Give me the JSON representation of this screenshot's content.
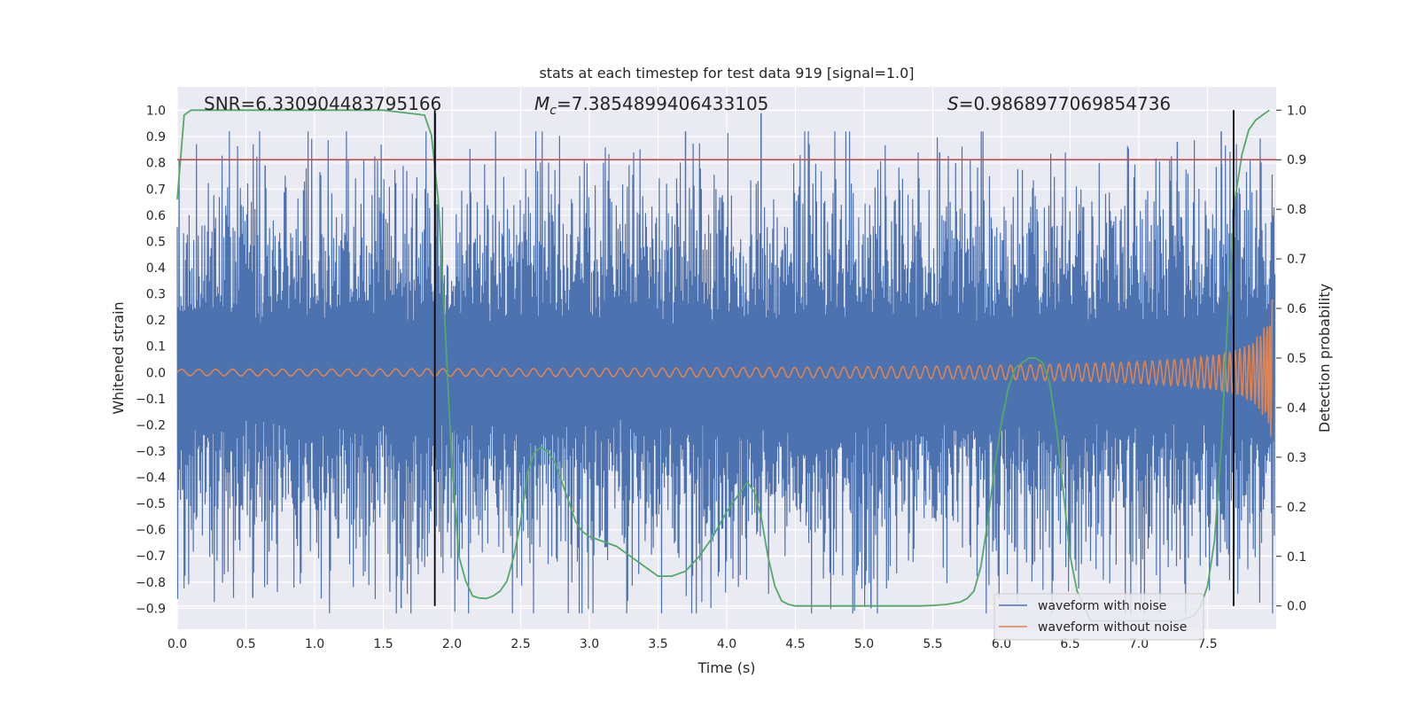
{
  "chart_data": {
    "type": "line",
    "title": "stats at each timestep for test data 919 [signal=1.0]",
    "xlabel": "Time (s)",
    "ylabel": "Whitened strain",
    "ylabel_right": "Detection probability",
    "xlim": [
      0.0,
      8.0
    ],
    "ylim": [
      -0.98,
      1.09
    ],
    "ylim_right": [
      -0.047,
      1.047
    ],
    "x_ticks": [
      "0.0",
      "0.5",
      "1.0",
      "1.5",
      "2.0",
      "2.5",
      "3.0",
      "3.5",
      "4.0",
      "4.5",
      "5.0",
      "5.5",
      "6.0",
      "6.5",
      "7.0",
      "7.5"
    ],
    "y_ticks": [
      "1.0",
      "0.9",
      "0.8",
      "0.7",
      "0.6",
      "0.5",
      "0.4",
      "0.3",
      "0.2",
      "0.1",
      "0.0",
      "−0.1",
      "−0.2",
      "−0.3",
      "−0.4",
      "−0.5",
      "−0.6",
      "−0.7",
      "−0.8",
      "−0.9"
    ],
    "y_ticks_right": [
      "1.0",
      "0.9",
      "0.8",
      "0.7",
      "0.6",
      "0.5",
      "0.4",
      "0.3",
      "0.2",
      "0.1",
      "0.0"
    ],
    "annotations": {
      "snr": "SNR=6.330904483795166",
      "mc": "=7.3854899406433105",
      "s": "=0.9868977069854736"
    },
    "series": [
      {
        "name": "waveform with noise",
        "color": "#4c72b0",
        "kind": "noisy strain, envelope ~ ±0.4, peaks to 0.99 / −0.9"
      },
      {
        "name": "waveform without noise",
        "color": "#dd8452",
        "kind": "chirp, amplitude 0.01 rising to 0.28 at t≈7.95"
      },
      {
        "name": "",
        "color": "#55a868",
        "axis": "right",
        "x": [
          0.0,
          0.05,
          0.1,
          0.2,
          0.5,
          1.0,
          1.5,
          1.8,
          1.85,
          1.9,
          1.95,
          2.0,
          2.05,
          2.1,
          2.15,
          2.2,
          2.25,
          2.3,
          2.35,
          2.4,
          2.45,
          2.5,
          2.55,
          2.6,
          2.65,
          2.7,
          2.75,
          2.8,
          2.85,
          2.9,
          2.95,
          3.0,
          3.1,
          3.2,
          3.3,
          3.4,
          3.5,
          3.6,
          3.7,
          3.8,
          3.9,
          4.0,
          4.1,
          4.15,
          4.2,
          4.25,
          4.3,
          4.35,
          4.4,
          4.45,
          4.5,
          4.6,
          4.8,
          5.0,
          5.2,
          5.4,
          5.5,
          5.6,
          5.7,
          5.75,
          5.8,
          5.85,
          5.9,
          5.95,
          6.0,
          6.05,
          6.1,
          6.15,
          6.2,
          6.25,
          6.3,
          6.35,
          6.4,
          6.45,
          6.5,
          6.55,
          6.6,
          6.65,
          6.7,
          6.8,
          6.9,
          7.0,
          7.1,
          7.2,
          7.3,
          7.4,
          7.45,
          7.5,
          7.55,
          7.6,
          7.65,
          7.7,
          7.75,
          7.8,
          7.85,
          7.9,
          7.95
        ],
        "y": [
          0.82,
          0.99,
          1.0,
          1.0,
          1.0,
          1.0,
          1.0,
          0.99,
          0.95,
          0.82,
          0.56,
          0.28,
          0.1,
          0.05,
          0.02,
          0.016,
          0.015,
          0.02,
          0.03,
          0.05,
          0.1,
          0.17,
          0.27,
          0.31,
          0.32,
          0.31,
          0.29,
          0.25,
          0.21,
          0.17,
          0.15,
          0.14,
          0.13,
          0.12,
          0.1,
          0.08,
          0.06,
          0.06,
          0.07,
          0.1,
          0.14,
          0.19,
          0.23,
          0.25,
          0.23,
          0.18,
          0.1,
          0.04,
          0.01,
          0.003,
          0.0,
          0.0,
          0.0,
          0.0,
          0.0,
          0.0,
          0.001,
          0.003,
          0.008,
          0.015,
          0.03,
          0.08,
          0.17,
          0.28,
          0.37,
          0.44,
          0.48,
          0.49,
          0.5,
          0.5,
          0.49,
          0.45,
          0.36,
          0.23,
          0.1,
          0.03,
          0.0,
          -0.03,
          -0.03,
          -0.03,
          -0.03,
          -0.03,
          -0.03,
          -0.03,
          -0.03,
          -0.02,
          0.0,
          0.04,
          0.13,
          0.32,
          0.6,
          0.82,
          0.91,
          0.96,
          0.98,
          0.99,
          1.0
        ]
      }
    ],
    "threshold_right": 0.9,
    "vlines_x": [
      1.875,
      7.69
    ],
    "legend": {
      "placement": "lower right",
      "entries": [
        "waveform with noise",
        "waveform without noise"
      ]
    },
    "grid": true,
    "colors": {
      "axes_bg": "#eaeaf2",
      "grid": "#ffffff",
      "threshold": "#c44e52",
      "vline": "#000000",
      "text": "#262626"
    }
  }
}
